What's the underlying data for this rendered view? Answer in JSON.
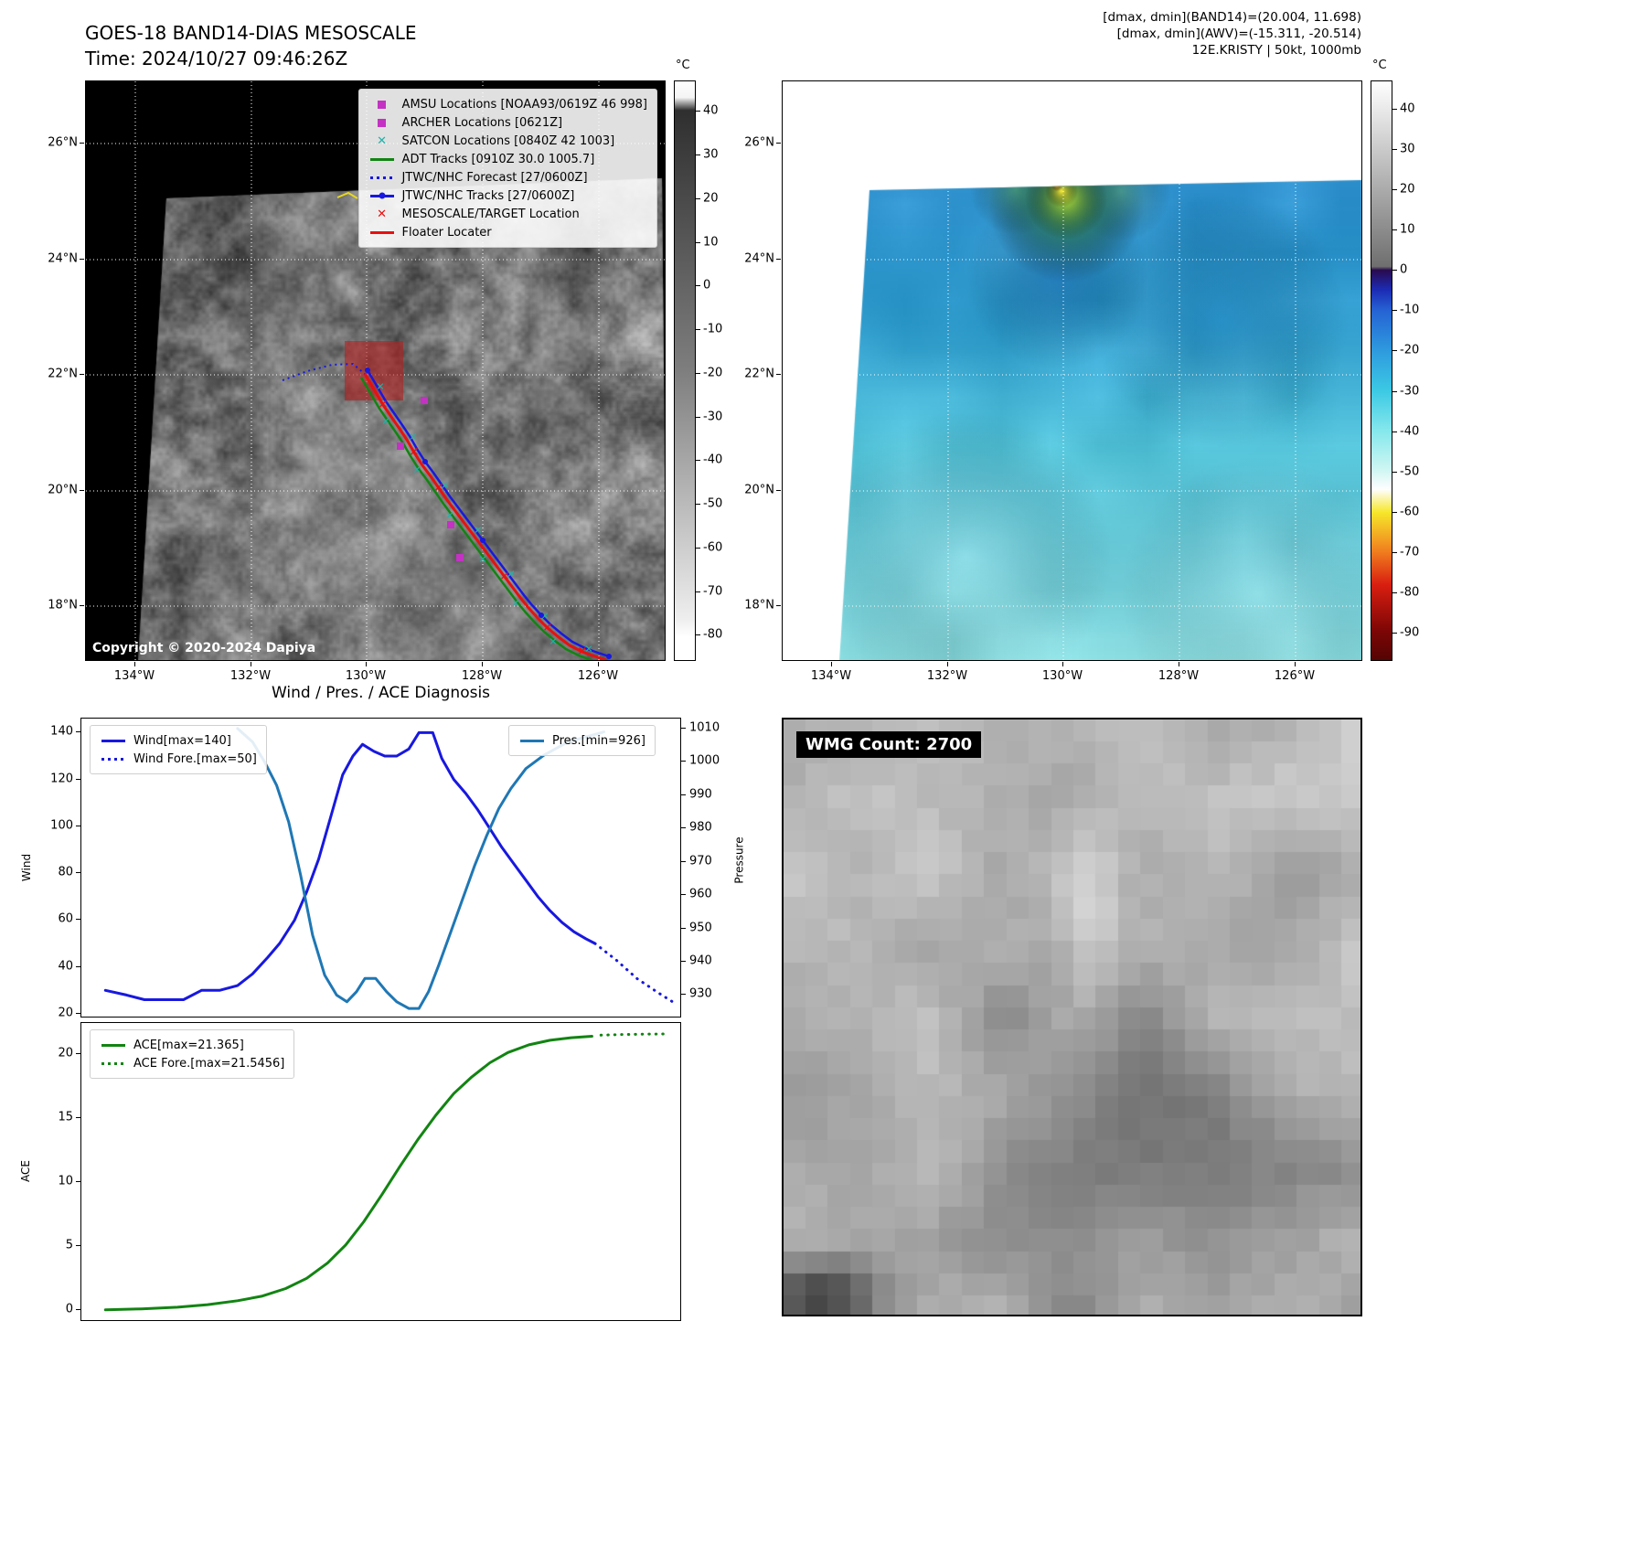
{
  "band14": {
    "title": "GOES-18 BAND14-DIAS MESOSCALE",
    "time_label": "Time: 2024/10/27 09:46:26Z",
    "copyright": "Copyright © 2020-2024 Dapiya",
    "legend": [
      {
        "label": "AMSU Locations [NOAA93/0619Z 46 998]",
        "marker": "square",
        "color": "#c332c3"
      },
      {
        "label": "ARCHER Locations [0621Z]",
        "marker": "square",
        "color": "#c332c3"
      },
      {
        "label": "SATCON Locations [0840Z 42 1003]",
        "marker": "x",
        "color": "#20b2aa"
      },
      {
        "label": "ADT Tracks [0910Z 30.0 1005.7]",
        "marker": "line",
        "color": "#128412"
      },
      {
        "label": "JTWC/NHC Forecast [27/0600Z]",
        "marker": "dotted",
        "color": "#1818e0"
      },
      {
        "label": "JTWC/NHC Tracks [27/0600Z]",
        "marker": "line-dot",
        "color": "#1818e0"
      },
      {
        "label": "MESOSCALE/TARGET Location",
        "marker": "x",
        "color": "#e81010"
      },
      {
        "label": "Floater Locater",
        "marker": "line",
        "color": "#e81010"
      }
    ],
    "lat_ticks": [
      "26°N",
      "24°N",
      "22°N",
      "20°N",
      "18°N"
    ],
    "lon_ticks": [
      "134°W",
      "132°W",
      "130°W",
      "128°W",
      "126°W"
    ],
    "colorbar": {
      "unit": "°C",
      "ticks": [
        40,
        30,
        20,
        10,
        0,
        -10,
        -20,
        -30,
        -40,
        -50,
        -60,
        -70,
        -80
      ],
      "stops": [
        [
          0,
          "#ffffff"
        ],
        [
          0.028,
          "#f4f4f4"
        ],
        [
          0.05,
          "#2f2f2f"
        ],
        [
          0.5,
          "#7e7e7e"
        ],
        [
          0.93,
          "#eeeeee"
        ],
        [
          0.96,
          "#ffffff"
        ],
        [
          1,
          "#ffffff"
        ]
      ]
    }
  },
  "awv": {
    "header_lines": [
      "[dmax, dmin](BAND14)=(20.004, 11.698)",
      "[dmax, dmin](AWV)=(-15.311, -20.514)",
      "12E.KRISTY | 50kt, 1000mb"
    ],
    "lat_ticks": [
      "26°N",
      "24°N",
      "22°N",
      "20°N",
      "18°N"
    ],
    "lon_ticks": [
      "134°W",
      "132°W",
      "130°W",
      "128°W",
      "126°W"
    ],
    "colorbar": {
      "unit": "°C",
      "ticks": [
        40,
        30,
        20,
        10,
        0,
        -10,
        -20,
        -30,
        -40,
        -50,
        -60,
        -70,
        -80,
        -90
      ],
      "stops": [
        [
          0,
          "#ffffff"
        ],
        [
          0.32,
          "#6f6f6f"
        ],
        [
          0.326,
          "#2a0a4e"
        ],
        [
          0.36,
          "#1c2bb4"
        ],
        [
          0.396,
          "#2563d4"
        ],
        [
          0.465,
          "#2e9ade"
        ],
        [
          0.535,
          "#3cc9e4"
        ],
        [
          0.604,
          "#85e8ec"
        ],
        [
          0.67,
          "#cdf6f2"
        ],
        [
          0.705,
          "#fefefe"
        ],
        [
          0.745,
          "#f6e72a"
        ],
        [
          0.813,
          "#f07d1e"
        ],
        [
          0.87,
          "#d81e10"
        ],
        [
          0.95,
          "#7c0606"
        ],
        [
          1,
          "#550404"
        ]
      ]
    }
  },
  "wmg": {
    "label": "WMG Count: 2700"
  },
  "diagnosis_title": "Wind / Pres. / ACE Diagnosis",
  "chart_data": [
    {
      "type": "line",
      "name": "wind-pressure",
      "title": "Wind / Pres. / ACE Diagnosis",
      "ylabel_left": "Wind",
      "ylabel_right": "Pressure",
      "y_left_ticks": [
        140,
        120,
        100,
        80,
        60,
        40,
        20
      ],
      "y_left_range": [
        18,
        146
      ],
      "y_right_ticks": [
        1010,
        1000,
        990,
        980,
        970,
        960,
        950,
        940,
        930
      ],
      "y_right_range": [
        923,
        1013
      ],
      "x_range": [
        0,
        1
      ],
      "legend_position": "upper left / upper right",
      "series": [
        {
          "name": "Wind[max=140]",
          "axis": "left",
          "style": "solid",
          "color": "#1818e0",
          "points": [
            [
              0.04,
              30
            ],
            [
              0.075,
              28
            ],
            [
              0.105,
              26
            ],
            [
              0.14,
              26
            ],
            [
              0.17,
              26
            ],
            [
              0.2,
              30
            ],
            [
              0.23,
              30
            ],
            [
              0.26,
              32
            ],
            [
              0.285,
              37
            ],
            [
              0.31,
              44
            ],
            [
              0.33,
              50
            ],
            [
              0.355,
              60
            ],
            [
              0.375,
              72
            ],
            [
              0.395,
              86
            ],
            [
              0.415,
              104
            ],
            [
              0.435,
              122
            ],
            [
              0.452,
              130
            ],
            [
              0.468,
              135
            ],
            [
              0.487,
              132
            ],
            [
              0.505,
              130
            ],
            [
              0.525,
              130
            ],
            [
              0.545,
              133
            ],
            [
              0.562,
              140
            ],
            [
              0.585,
              140
            ],
            [
              0.6,
              129
            ],
            [
              0.62,
              120
            ],
            [
              0.64,
              114
            ],
            [
              0.66,
              107
            ],
            [
              0.68,
              99
            ],
            [
              0.7,
              91
            ],
            [
              0.72,
              84
            ],
            [
              0.74,
              77
            ],
            [
              0.76,
              70
            ],
            [
              0.78,
              64
            ],
            [
              0.8,
              59
            ],
            [
              0.82,
              55
            ],
            [
              0.84,
              52
            ],
            [
              0.855,
              50
            ]
          ]
        },
        {
          "name": "Wind Fore.[max=50]",
          "axis": "left",
          "style": "dotted",
          "color": "#1818e0",
          "points": [
            [
              0.855,
              50
            ],
            [
              0.89,
              43
            ],
            [
              0.925,
              35
            ],
            [
              0.96,
              29
            ],
            [
              0.985,
              25
            ]
          ]
        },
        {
          "name": "Pres.[min=926]",
          "axis": "right",
          "style": "solid",
          "color": "#1f77b4",
          "points": [
            [
              0.26,
              1010
            ],
            [
              0.285,
              1006
            ],
            [
              0.305,
              1000
            ],
            [
              0.325,
              993
            ],
            [
              0.345,
              982
            ],
            [
              0.365,
              966
            ],
            [
              0.385,
              948
            ],
            [
              0.405,
              936
            ],
            [
              0.425,
              930
            ],
            [
              0.442,
              928
            ],
            [
              0.458,
              931
            ],
            [
              0.472,
              935
            ],
            [
              0.49,
              935
            ],
            [
              0.508,
              931
            ],
            [
              0.525,
              928
            ],
            [
              0.545,
              926
            ],
            [
              0.562,
              926
            ],
            [
              0.578,
              931
            ],
            [
              0.595,
              939
            ],
            [
              0.615,
              949
            ],
            [
              0.635,
              959
            ],
            [
              0.655,
              969
            ],
            [
              0.675,
              978
            ],
            [
              0.695,
              986
            ],
            [
              0.715,
              992
            ],
            [
              0.74,
              998
            ],
            [
              0.77,
              1002
            ],
            [
              0.81,
              1006
            ],
            [
              0.87,
              1009
            ]
          ]
        }
      ]
    },
    {
      "type": "line",
      "name": "ace",
      "ylabel_left": "ACE",
      "y_left_ticks": [
        20,
        15,
        10,
        5,
        0
      ],
      "y_left_range": [
        -0.9,
        22.4
      ],
      "x_range": [
        0,
        1
      ],
      "series": [
        {
          "name": "ACE[max=21.365]",
          "axis": "left",
          "style": "solid",
          "color": "#128412",
          "points": [
            [
              0.04,
              0.05
            ],
            [
              0.1,
              0.12
            ],
            [
              0.16,
              0.25
            ],
            [
              0.21,
              0.45
            ],
            [
              0.26,
              0.75
            ],
            [
              0.3,
              1.1
            ],
            [
              0.34,
              1.7
            ],
            [
              0.375,
              2.5
            ],
            [
              0.41,
              3.7
            ],
            [
              0.44,
              5.1
            ],
            [
              0.47,
              6.9
            ],
            [
              0.5,
              9.0
            ],
            [
              0.53,
              11.2
            ],
            [
              0.56,
              13.3
            ],
            [
              0.59,
              15.2
            ],
            [
              0.62,
              16.9
            ],
            [
              0.65,
              18.2
            ],
            [
              0.68,
              19.3
            ],
            [
              0.71,
              20.1
            ],
            [
              0.745,
              20.7
            ],
            [
              0.78,
              21.05
            ],
            [
              0.815,
              21.25
            ],
            [
              0.85,
              21.365
            ]
          ]
        },
        {
          "name": "ACE Fore.[max=21.5456]",
          "axis": "left",
          "style": "dotted",
          "color": "#128412",
          "points": [
            [
              0.865,
              21.45
            ],
            [
              0.9,
              21.5
            ],
            [
              0.935,
              21.53
            ],
            [
              0.97,
              21.5456
            ]
          ]
        }
      ]
    },
    {
      "type": "map",
      "name": "band14-mesoscale-map",
      "description": "GOES-18 infrared grayscale mesoscale sector with storm track overlays heading southeast from 130W/22N to 126W/17N",
      "lon_ticks_w": [
        134,
        132,
        130,
        128,
        126
      ],
      "lat_ticks_n": [
        26,
        24,
        22,
        20,
        18
      ]
    },
    {
      "type": "map",
      "name": "awv-difference-map",
      "description": "Water vapor difference sector in blue/cyan shades with cold green-yellow overshoot near 130W/25N",
      "lon_ticks_w": [
        134,
        132,
        130,
        128,
        126
      ],
      "lat_ticks_n": [
        26,
        24,
        22,
        20,
        18
      ]
    }
  ]
}
